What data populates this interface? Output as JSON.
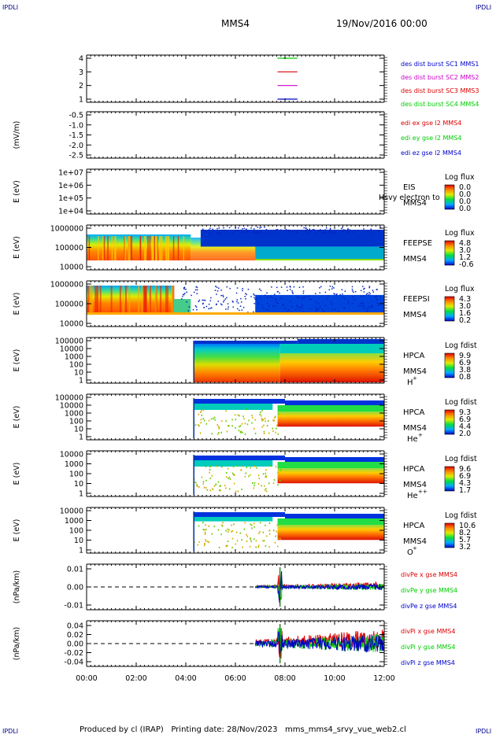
{
  "header": {
    "corner_tl": "IPDLI",
    "corner_tr": "IPDLI",
    "corner_bl": "IPDLI",
    "corner_br": "IPDLI",
    "spacecraft": "MMS4",
    "date": "19/Nov/2016 00:00"
  },
  "footer": {
    "text": "Produced by cl (IRAP)   Printing date: 28/Nov/2023   mms_mms4_srvy_vue_web2.cl"
  },
  "colors": {
    "red": "#dd0000",
    "green": "#00cc00",
    "blue": "#0000cc",
    "magenta": "#cc00cc",
    "axis": "#000000",
    "corner_text": "#000088"
  },
  "chart_data": {
    "type": "multi-panel time series",
    "x_ticks": [
      "00:00",
      "02:00",
      "04:00",
      "06:00",
      "08:00",
      "10:00",
      "12:00"
    ],
    "x_range_hours": [
      0,
      12
    ],
    "panels": [
      {
        "id": "burst",
        "type": "timeline",
        "ylabel": "",
        "yticks": [
          "4",
          "3",
          "2",
          "1"
        ],
        "legend": [
          {
            "text": "des dist burst SC1 MMS1",
            "color": "#0000cc"
          },
          {
            "text": "des dist burst SC2 MMS2",
            "color": "#cc00cc"
          },
          {
            "text": "des dist burst SC3 MMS3",
            "color": "#dd0000"
          },
          {
            "text": "des dist burst SC4 MMS4",
            "color": "#00cc00"
          }
        ],
        "segments": [
          {
            "sc": 4,
            "start_h": 7.7,
            "end_h": 8.5,
            "color": "#00cc00"
          },
          {
            "sc": 3,
            "start_h": 7.7,
            "end_h": 8.5,
            "color": "#dd0000"
          },
          {
            "sc": 2,
            "start_h": 7.7,
            "end_h": 8.5,
            "color": "#cc00cc"
          },
          {
            "sc": 1,
            "start_h": 7.7,
            "end_h": 8.5,
            "color": "#0000cc"
          }
        ]
      },
      {
        "id": "edi",
        "type": "line",
        "ylabel": "(mV/m)",
        "yticks": [
          "-0.5",
          "-1.0",
          "-1.5",
          "-2.0",
          "-2.5"
        ],
        "legend": [
          {
            "text": "edi ex gse l2 MMS4",
            "color": "#dd0000"
          },
          {
            "text": "edi ey gse l2 MMS4",
            "color": "#00cc00"
          },
          {
            "text": "edi ez gse l2 MMS4",
            "color": "#0000cc"
          }
        ]
      },
      {
        "id": "eis",
        "type": "heatmap",
        "ylabel": "E (eV)",
        "yticks": [
          "1e+07",
          "1e+06",
          "1e+05",
          "1e+04"
        ],
        "labels": [
          "EIS",
          "MMS4"
        ],
        "overlay_text": "Hsvy electron to",
        "colorbar_title": "Log flux",
        "colorbar_ticks": [
          "0.0",
          "0.0",
          "0.0",
          "0.0"
        ]
      },
      {
        "id": "feepse",
        "type": "heatmap",
        "ylabel": "E (eV)",
        "yticks": [
          "1000000",
          "100000",
          "10000"
        ],
        "labels": [
          "FEEPSE",
          "MMS4"
        ],
        "colorbar_title": "Log flux",
        "colorbar_ticks": [
          "4.8",
          "3.0",
          "1.2",
          "-0.6"
        ]
      },
      {
        "id": "feepsi",
        "type": "heatmap",
        "ylabel": "E (eV)",
        "yticks": [
          "1000000",
          "100000",
          "10000"
        ],
        "labels": [
          "FEEPSI",
          "MMS4"
        ],
        "colorbar_title": "Log flux",
        "colorbar_ticks": [
          "4.3",
          "3.0",
          "1.6",
          "0.2"
        ]
      },
      {
        "id": "hpca_h",
        "type": "heatmap",
        "ylabel": "E (eV)",
        "yticks": [
          "100000",
          "10000",
          "1000",
          "100",
          "10",
          "1"
        ],
        "labels": [
          "HPCA",
          "MMS4"
        ],
        "species": "H",
        "species_sup": "+",
        "colorbar_title": "Log fdist",
        "colorbar_ticks": [
          "9.9",
          "6.9",
          "3.8",
          "0.8"
        ]
      },
      {
        "id": "hpca_he",
        "type": "heatmap",
        "ylabel": "E (eV)",
        "yticks": [
          "100000",
          "10000",
          "1000",
          "100",
          "10",
          "1"
        ],
        "labels": [
          "HPCA",
          "MMS4"
        ],
        "species": "He",
        "species_sup": "+",
        "colorbar_title": "Log fdist",
        "colorbar_ticks": [
          "9.3",
          "6.9",
          "4.4",
          "2.0"
        ]
      },
      {
        "id": "hpca_hepp",
        "type": "heatmap",
        "ylabel": "E (eV)",
        "yticks": [
          "10000",
          "1000",
          "100",
          "10",
          "1"
        ],
        "labels": [
          "HPCA",
          "MMS4"
        ],
        "species": "He",
        "species_sup": "++",
        "colorbar_title": "Log fdist",
        "colorbar_ticks": [
          "9.6",
          "6.9",
          "4.3",
          "1.7"
        ]
      },
      {
        "id": "hpca_o",
        "type": "heatmap",
        "ylabel": "E (eV)",
        "yticks": [
          "10000",
          "1000",
          "100",
          "10",
          "1"
        ],
        "labels": [
          "HPCA",
          "MMS4"
        ],
        "species": "O",
        "species_sup": "+",
        "colorbar_title": "Log fdist",
        "colorbar_ticks": [
          "10.6",
          "8.2",
          "5.7",
          "3.2"
        ]
      },
      {
        "id": "divpe",
        "type": "line",
        "ylabel": "(nPa/km)",
        "yticks": [
          "0.01",
          "0.00",
          "-0.01"
        ],
        "ylim": [
          -0.016,
          0.016
        ],
        "legend": [
          {
            "text": "divPe x gse MMS4",
            "color": "#dd0000"
          },
          {
            "text": "divPe y gse MMS4",
            "color": "#00cc00"
          },
          {
            "text": "divPe z gse MMS4",
            "color": "#0000cc"
          }
        ]
      },
      {
        "id": "divpi",
        "type": "line",
        "ylabel": "(nPa/km)",
        "yticks": [
          "0.04",
          "0.02",
          "0.00",
          "-0.02",
          "-0.04"
        ],
        "ylim": [
          -0.04,
          0.04
        ],
        "legend": [
          {
            "text": "divPi x gse MMS4",
            "color": "#dd0000"
          },
          {
            "text": "divPi y gse MMS4",
            "color": "#00cc00"
          },
          {
            "text": "divPi z gse MMS4",
            "color": "#0000cc"
          }
        ]
      }
    ]
  }
}
